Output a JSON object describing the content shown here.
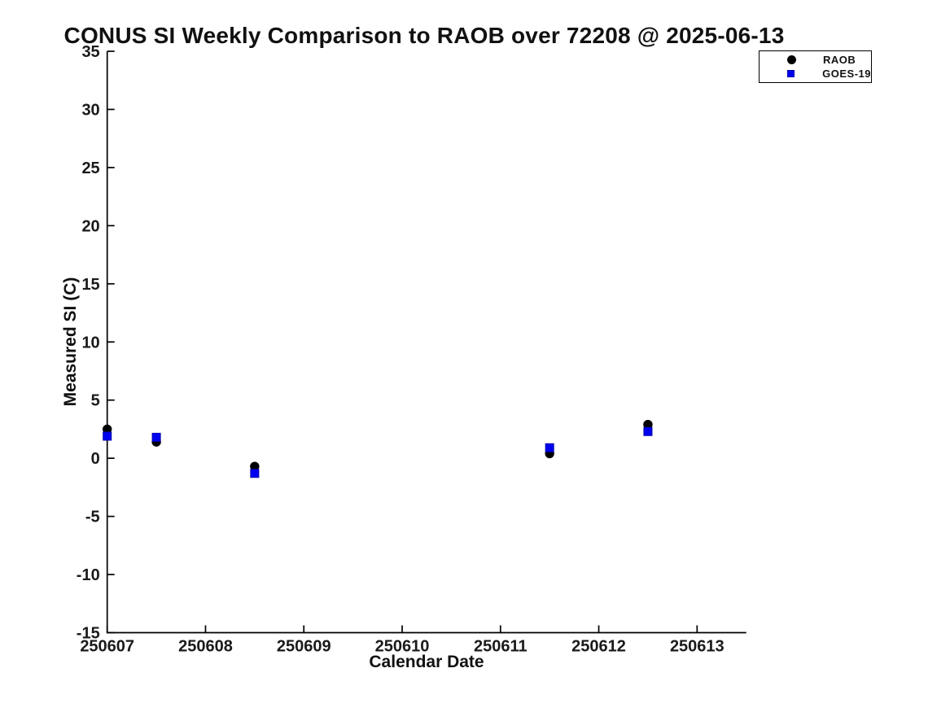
{
  "colors": {
    "background": "#ffffff",
    "axis": "#000000",
    "text": "#1a1a1a",
    "raob_marker": "#000000",
    "goes19_marker": "#0000f0",
    "goes19_marker_edge": "#0000b0"
  },
  "chart_data": {
    "type": "scatter",
    "title": "CONUS SI Weekly Comparison to RAOB over 72208 @ 2025-06-13",
    "xlabel": "Calendar Date",
    "ylabel": "Measured SI (C)",
    "xlim": [
      250607,
      250613.5
    ],
    "ylim": [
      -15,
      35
    ],
    "xticks": [
      250607,
      250608,
      250609,
      250610,
      250611,
      250612,
      250613
    ],
    "yticks": [
      35,
      30,
      25,
      20,
      15,
      10,
      5,
      0,
      -5,
      -10,
      -15
    ],
    "grid": false,
    "axis_style": "left-bottom-spines-ticks-inward",
    "x": [
      250607,
      250607.5,
      250608.5,
      250611.5,
      250612.5
    ],
    "series": [
      {
        "name": "RAOB",
        "marker": "circle",
        "color": "#000000",
        "values": [
          2.5,
          1.4,
          -0.7,
          0.4,
          2.9
        ]
      },
      {
        "name": "GOES-19",
        "marker": "square",
        "color": "#0000f0",
        "edge_color": "#0000b0",
        "values": [
          1.9,
          1.8,
          -1.3,
          0.9,
          2.3
        ]
      }
    ],
    "legend": {
      "position": "upper-right-outside",
      "entries": [
        "RAOB",
        "GOES-19"
      ]
    }
  }
}
